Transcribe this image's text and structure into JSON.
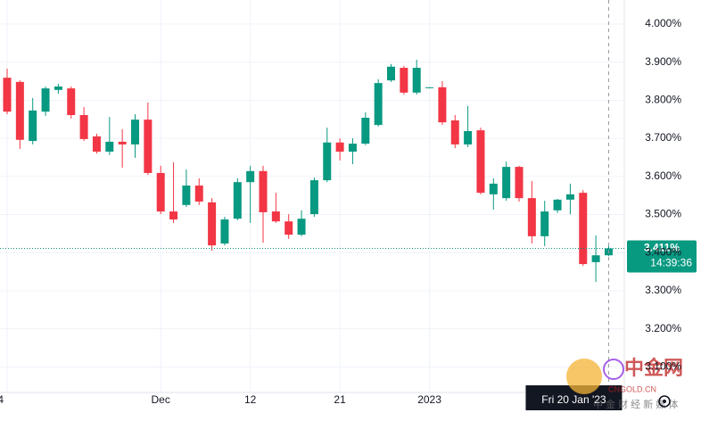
{
  "chart_data": {
    "type": "candlestick",
    "categories": [
      "4",
      null,
      null,
      null,
      null,
      null,
      null,
      null,
      null,
      null,
      null,
      null,
      "Dec",
      null,
      null,
      null,
      null,
      null,
      null,
      "12",
      null,
      null,
      null,
      null,
      null,
      null,
      "21",
      null,
      null,
      null,
      null,
      null,
      null,
      "2023",
      null,
      null,
      null,
      null,
      null,
      null,
      null,
      null,
      null,
      null,
      null,
      null,
      null,
      null
    ],
    "open": [
      3.859,
      3.848,
      3.693,
      3.77,
      3.827,
      3.831,
      3.761,
      3.705,
      3.665,
      3.691,
      3.684,
      3.749,
      3.609,
      3.508,
      3.525,
      3.576,
      3.532,
      3.424,
      3.489,
      3.585,
      3.614,
      3.508,
      3.482,
      3.447,
      3.501,
      3.59,
      3.689,
      3.665,
      3.686,
      3.735,
      3.852,
      3.885,
      3.82,
      3.834,
      3.834,
      3.747,
      3.684,
      3.721,
      3.553,
      3.543,
      3.625,
      3.543,
      3.443,
      3.511,
      3.539,
      3.557,
      3.375,
      3.393
    ],
    "high": [
      3.883,
      3.852,
      3.806,
      3.836,
      3.843,
      3.836,
      3.782,
      3.712,
      3.756,
      3.724,
      3.763,
      3.794,
      3.628,
      3.637,
      3.618,
      3.595,
      3.543,
      3.494,
      3.595,
      3.628,
      3.628,
      3.557,
      3.501,
      3.511,
      3.597,
      3.728,
      3.7,
      3.7,
      3.768,
      3.855,
      3.895,
      3.89,
      3.906,
      3.834,
      3.85,
      3.761,
      3.785,
      3.728,
      3.595,
      3.639,
      3.628,
      3.588,
      3.536,
      3.541,
      3.581,
      3.564,
      3.445,
      3.419
    ],
    "low": [
      3.763,
      3.672,
      3.684,
      3.759,
      3.817,
      3.752,
      3.693,
      3.66,
      3.656,
      3.623,
      3.649,
      3.604,
      3.501,
      3.478,
      3.52,
      3.525,
      3.405,
      3.419,
      3.485,
      3.478,
      3.426,
      3.478,
      3.436,
      3.443,
      3.494,
      3.585,
      3.642,
      3.632,
      3.682,
      3.731,
      3.848,
      3.815,
      3.815,
      3.831,
      3.735,
      3.674,
      3.677,
      3.553,
      3.513,
      3.536,
      3.534,
      3.424,
      3.417,
      3.504,
      3.501,
      3.365,
      3.323,
      3.391
    ],
    "close": [
      3.77,
      3.696,
      3.773,
      3.831,
      3.836,
      3.761,
      3.698,
      3.665,
      3.691,
      3.684,
      3.749,
      3.609,
      3.508,
      3.487,
      3.576,
      3.534,
      3.419,
      3.487,
      3.585,
      3.614,
      3.506,
      3.482,
      3.447,
      3.489,
      3.59,
      3.689,
      3.665,
      3.686,
      3.754,
      3.845,
      3.888,
      3.82,
      3.885,
      3.834,
      3.742,
      3.684,
      3.719,
      3.557,
      3.581,
      3.625,
      3.543,
      3.443,
      3.508,
      3.539,
      3.553,
      3.37,
      3.393,
      3.411
    ],
    "up_color": "#089981",
    "down_color": "#f23645",
    "ylim": [
      3.033,
      4.063
    ],
    "yticks": [
      {
        "value": 4.0,
        "label": "4.000%"
      },
      {
        "value": 3.9,
        "label": "3.900%"
      },
      {
        "value": 3.8,
        "label": "3.800%"
      },
      {
        "value": 3.7,
        "label": "3.700%"
      },
      {
        "value": 3.6,
        "label": "3.600%"
      },
      {
        "value": 3.5,
        "label": "3.500%"
      },
      {
        "value": 3.4,
        "label": "3.400%"
      },
      {
        "value": 3.3,
        "label": "3.300%"
      },
      {
        "value": 3.2,
        "label": "3.200%"
      },
      {
        "value": 3.1,
        "label": "3.100%"
      }
    ],
    "grid": true,
    "last_price": {
      "value": 3.411,
      "label": "3.411%"
    },
    "countdown": "14:39:36",
    "crosshair_label": "Fri 20 Jan '23",
    "watermark": {
      "logo": "中金网",
      "site": "CNGOLD.CN",
      "slogan": "中 金 财 经 新 媒 体"
    }
  }
}
